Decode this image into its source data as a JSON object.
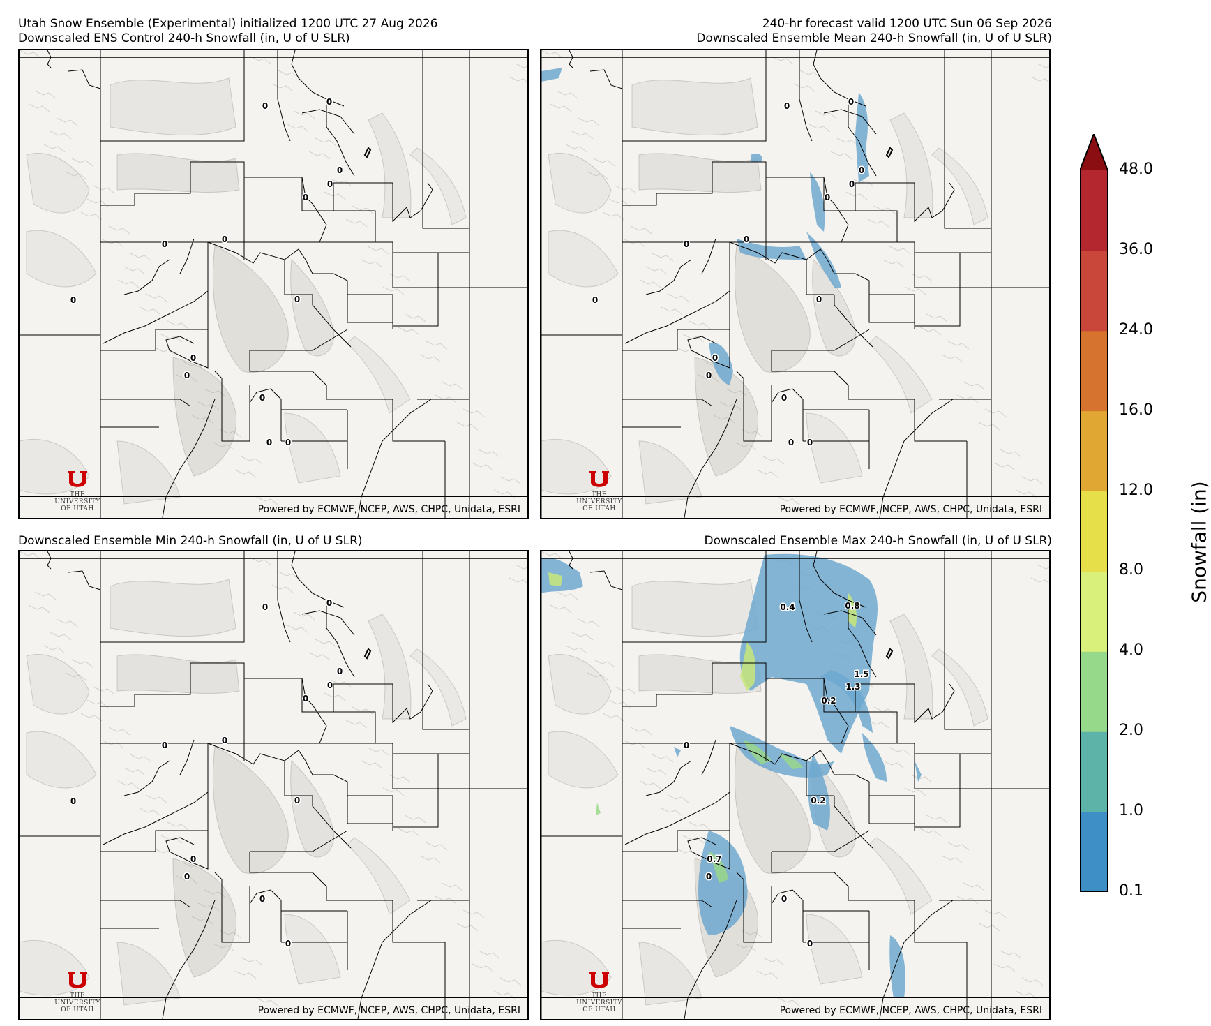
{
  "header": {
    "top_left_line1": "Utah Snow Ensemble (Experimental) initialized 1200 UTC 27 Aug 2026",
    "top_left_line2": "Downscaled ENS Control 240-h Snowfall (in, U of U SLR)",
    "top_right_line1": "240-hr forecast valid 1200 UTC Sun 06 Sep 2026",
    "top_right_line2": "Downscaled Ensemble Mean 240-h Snowfall (in, U of U SLR)",
    "bottom_left": "Downscaled Ensemble Min 240-h Snowfall (in, U of U SLR)",
    "bottom_right": "Downscaled Ensemble Max 240-h Snowfall (in, U of U SLR)"
  },
  "credit": "Powered by ECMWF, NCEP, AWS, CHPC, Unidata, ESRI",
  "logo": {
    "line1": "THE",
    "line2": "UNIVERSITY",
    "line3": "OF UTAH"
  },
  "panels": {
    "control": {
      "labels": [
        "0",
        "0",
        "0",
        "0",
        "0",
        "0",
        "0",
        "0",
        "0",
        "0",
        "0",
        "0",
        "0",
        "0"
      ]
    },
    "mean": {
      "labels": [
        "0",
        "0",
        "0",
        "0",
        "0",
        "0",
        "0",
        "0",
        "0",
        "0",
        "0",
        "0",
        "0",
        "0"
      ]
    },
    "min": {
      "labels": [
        "0",
        "0",
        "0",
        "0",
        "0",
        "0",
        "0",
        "0",
        "0",
        "0",
        "0",
        "0",
        "0"
      ]
    },
    "max": {
      "labels": [
        "0.4",
        "0.8",
        "1.5",
        "1.3",
        "0.2",
        "0",
        "0.2",
        "0.7",
        "0",
        "0",
        "0"
      ]
    }
  },
  "colorbar": {
    "title": "Snowfall (in)",
    "ticks": [
      "0.1",
      "1.0",
      "2.0",
      "4.0",
      "8.0",
      "12.0",
      "16.0",
      "24.0",
      "36.0",
      "48.0"
    ],
    "colors": [
      "#3d8fc6",
      "#5eb3a9",
      "#96d98a",
      "#d9f07a",
      "#e6df4a",
      "#e0a832",
      "#d6732f",
      "#c9473a",
      "#b5272f"
    ],
    "extend_color": "#8b0f12"
  }
}
